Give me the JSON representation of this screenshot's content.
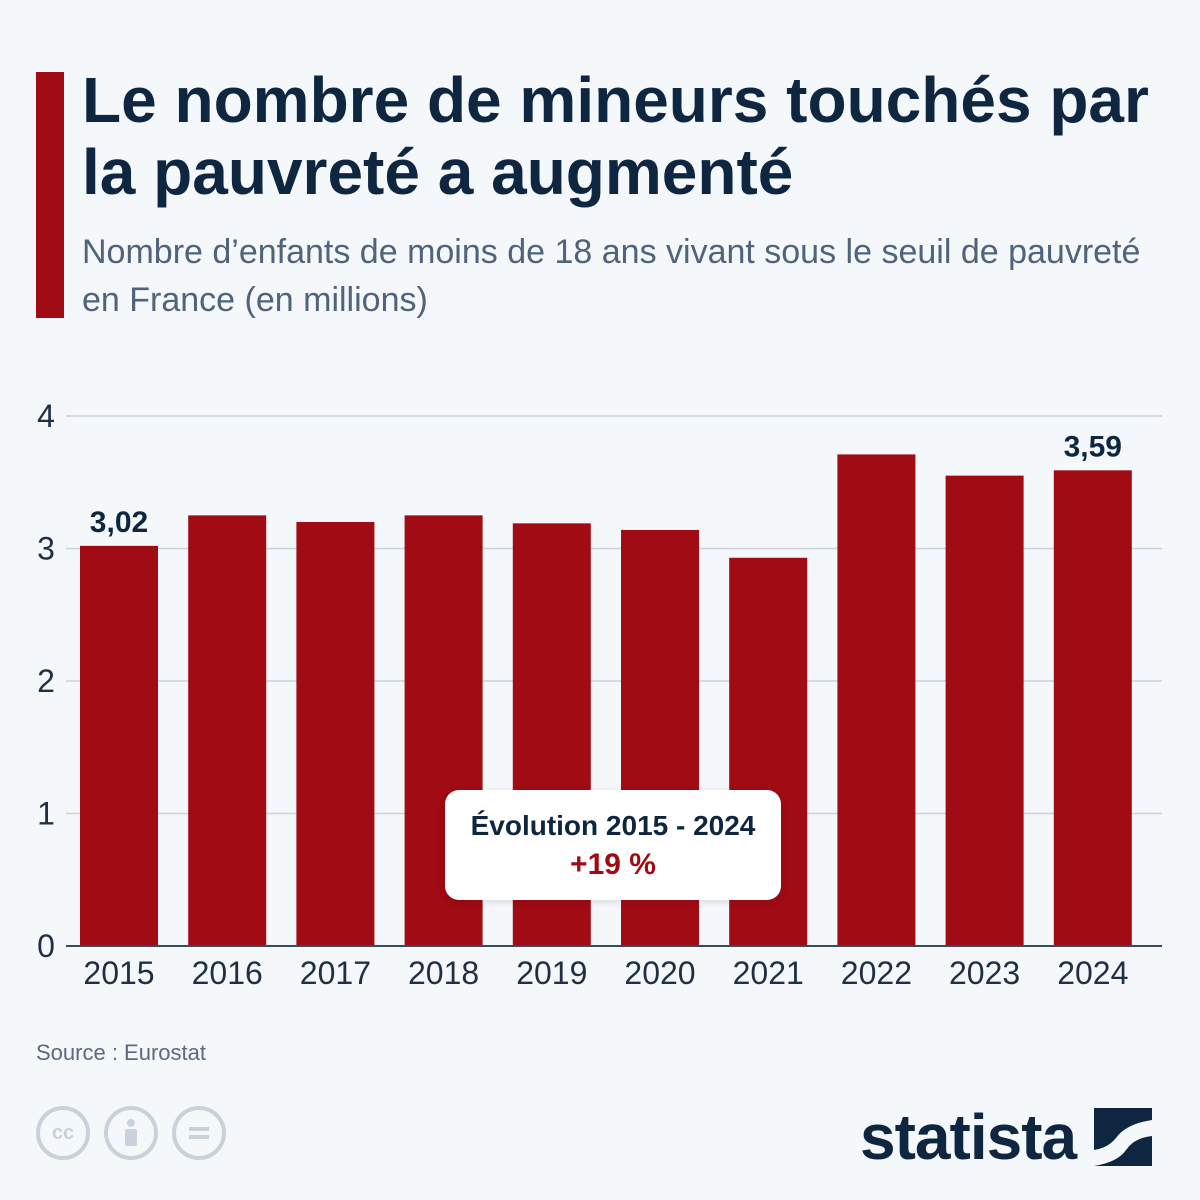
{
  "header": {
    "title": "Le nombre de mineurs touchés par la pauvreté a augmenté",
    "subtitle": "Nombre d’enfants de moins de 18 ans vivant sous le seuil de pauvreté en France (en millions)"
  },
  "chart_data": {
    "type": "bar",
    "categories": [
      "2015",
      "2016",
      "2017",
      "2018",
      "2019",
      "2020",
      "2021",
      "2022",
      "2023",
      "2024"
    ],
    "values": [
      3.02,
      3.25,
      3.2,
      3.25,
      3.19,
      3.14,
      2.93,
      3.71,
      3.55,
      3.59
    ],
    "value_labels": {
      "0": "3,02",
      "9": "3,59"
    },
    "y_ticks": [
      "0",
      "1",
      "2",
      "3",
      "4"
    ],
    "ylim": [
      0,
      4
    ],
    "grid": true,
    "bar_color": "#a00b14"
  },
  "callout": {
    "title": "Évolution 2015 - 2024",
    "value": "+19 %"
  },
  "footer": {
    "source": "Source : Eurostat",
    "brand": "statista",
    "license_icons": [
      "cc-icon",
      "attribution-icon",
      "no-derivatives-icon"
    ]
  }
}
